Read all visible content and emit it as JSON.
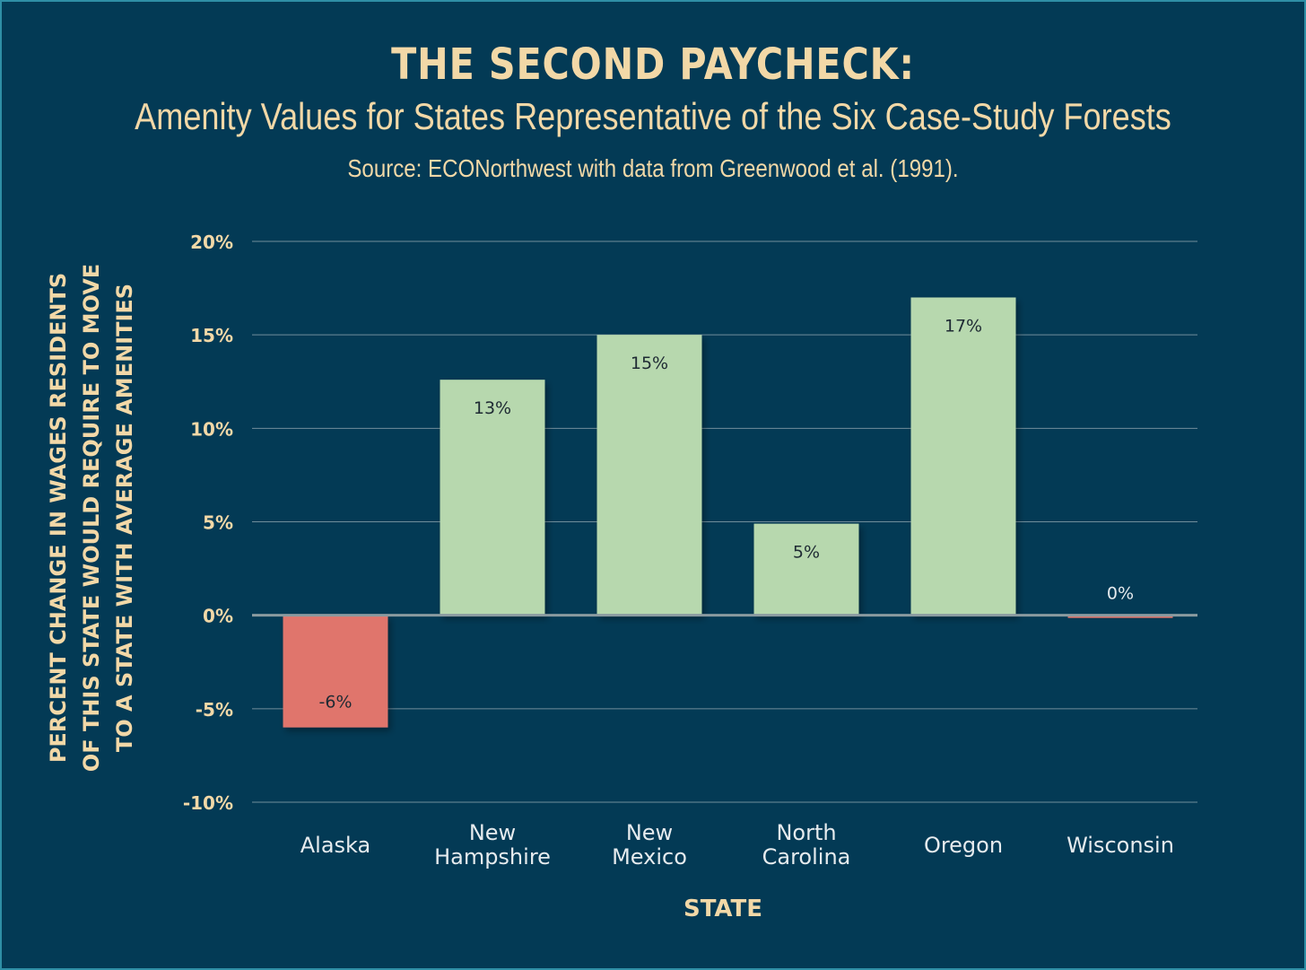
{
  "header": {
    "title": "THE SECOND PAYCHECK:",
    "subtitle": "Amenity Values for States Representative of the Six Case-Study Forests",
    "source": "Source: ECONorthwest with data from Greenwood et al. (1991)."
  },
  "chart_data": {
    "type": "bar",
    "categories": [
      [
        "Alaska"
      ],
      [
        "New",
        "Hampshire"
      ],
      [
        "New",
        "Mexico"
      ],
      [
        "North",
        "Carolina"
      ],
      [
        "Oregon"
      ],
      [
        "Wisconsin"
      ]
    ],
    "values": [
      -6,
      12.6,
      15,
      4.9,
      17,
      -0.1
    ],
    "value_labels": [
      "-6%",
      "13%",
      "15%",
      "5%",
      "17%",
      "0%"
    ],
    "ylim": [
      -10,
      20
    ],
    "yticks": [
      20,
      15,
      10,
      5,
      0,
      -5,
      -10
    ],
    "ytick_labels": [
      "20%",
      "15%",
      "10%",
      "5%",
      "0%",
      "-5%",
      "-10%"
    ],
    "xlabel": "STATE",
    "ylabel_lines": [
      "PERCENT CHANGE IN WAGES RESIDENTS",
      "OF THIS STATE WOULD REQUIRE TO MOVE",
      "TO A STATE WITH AVERAGE AMENITIES"
    ],
    "colors": {
      "positive": "#b7d8ae",
      "negative": "#e0756c",
      "background": "#033a55",
      "grid": "#8fa3ad",
      "zero_line": "#8a9aa0"
    },
    "grid": true
  }
}
